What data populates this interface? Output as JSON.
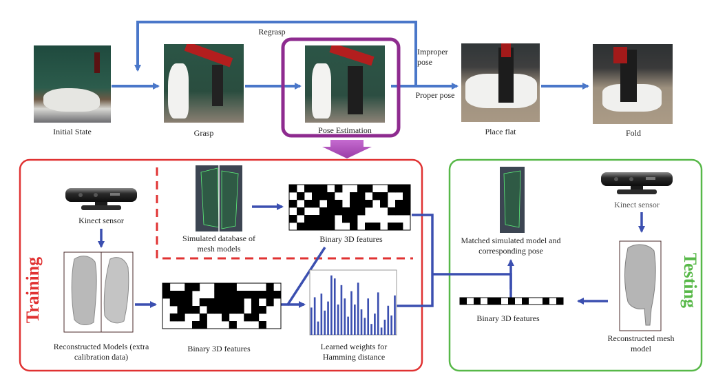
{
  "pipeline": {
    "regrasp": "Regrasp",
    "improper_pose": "Improper pose",
    "proper_pose": "Proper pose",
    "stages": [
      "Initial State",
      "Grasp",
      "Pose Estimation",
      "Place flat",
      "Fold"
    ]
  },
  "training": {
    "title": "Training",
    "kinect": "Kinect sensor",
    "simulated_db": "Simulated database of mesh models",
    "binary_top": "Binary 3D features",
    "reconstructed": "Reconstructed Models (extra calibration data)",
    "binary_bottom": "Binary 3D features",
    "weights": "Learned weights for Hamming distance",
    "weight_bars": [
      0.45,
      0.62,
      0.22,
      0.68,
      0.4,
      0.55,
      0.98,
      0.93,
      0.5,
      0.82,
      0.6,
      0.3,
      0.72,
      0.5,
      0.86,
      0.42,
      0.28,
      0.6,
      0.18,
      0.35,
      0.7,
      0.12,
      0.25,
      0.48,
      0.32,
      0.65
    ]
  },
  "testing": {
    "title": "Testing",
    "kinect": "Kinect sensor",
    "matched": "Matched simulated model and corresponding pose",
    "binary": "Binary 3D features",
    "reconstructed": "Reconstructed mesh model"
  },
  "colors": {
    "arrow": "#4a77c9",
    "dark_arrow": "#3b4fb0",
    "training": "#e03232",
    "testing": "#57b848",
    "highlight": "#8e2b8f"
  }
}
